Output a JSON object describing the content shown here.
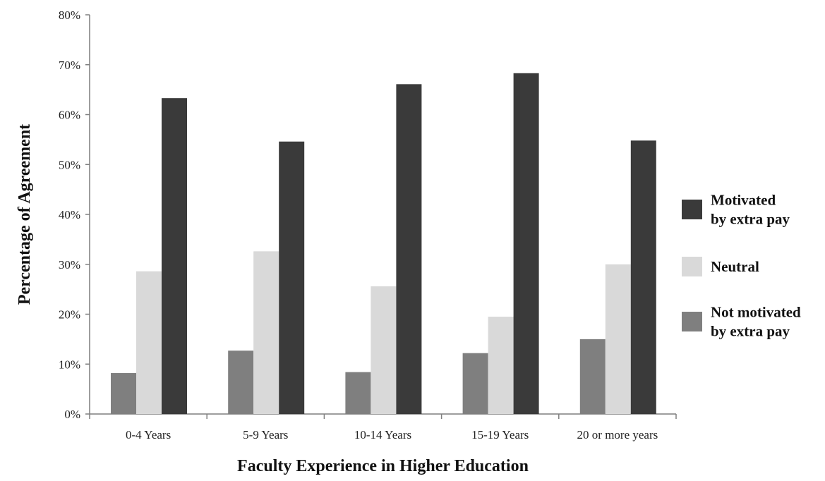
{
  "chart_data": {
    "type": "bar",
    "title": "",
    "xlabel": "Faculty Experience in Higher Education",
    "ylabel": "Percentage of  Agreement",
    "ylim": [
      0,
      80
    ],
    "yticks": [
      "0%",
      "10%",
      "20%",
      "30%",
      "40%",
      "50%",
      "60%",
      "70%",
      "80%"
    ],
    "ytick_values": [
      0,
      10,
      20,
      30,
      40,
      50,
      60,
      70,
      80
    ],
    "categories": [
      "0-4 Years",
      "5-9 Years",
      "10-14 Years",
      "15-19 Years",
      "20 or more years"
    ],
    "series": [
      {
        "name": "Not motivated by extra pay",
        "legend_lines": [
          "Not motivated",
          "by extra pay"
        ],
        "color": "#7f7f7f",
        "values": [
          8.2,
          12.7,
          8.4,
          12.2,
          15.0
        ]
      },
      {
        "name": "Neutral",
        "legend_lines": [
          "Neutral"
        ],
        "color": "#d9d9d9",
        "values": [
          28.6,
          32.6,
          25.6,
          19.5,
          30.0
        ]
      },
      {
        "name": "Motivated by extra pay",
        "legend_lines": [
          "Motivated",
          "by extra pay"
        ],
        "color": "#3a3a3a",
        "values": [
          63.3,
          54.6,
          66.1,
          68.3,
          54.8
        ]
      }
    ],
    "legend_order": [
      2,
      1,
      0
    ],
    "legend_position": "right",
    "grid": false
  }
}
